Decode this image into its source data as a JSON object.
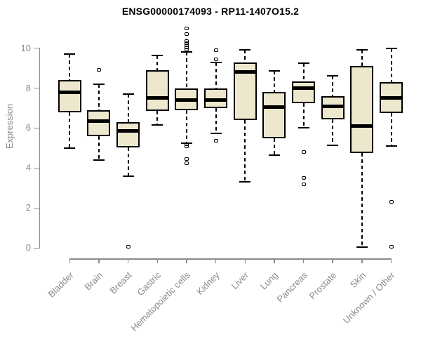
{
  "figure": {
    "title": "ENSG00000174093 - RP11-1407O15.2",
    "background": "#ffffff"
  },
  "chart_data": {
    "type": "boxplot",
    "title": "ENSG00000174093 - RP11-1407O15.2",
    "xlabel": "",
    "ylabel": "Expression",
    "ylim": [
      0,
      11.2
    ],
    "yticks": [
      0,
      2,
      4,
      6,
      8,
      10
    ],
    "grid": false,
    "legend": false,
    "box_fill_color": "#ede7cd",
    "box_border_color": "#000000",
    "median_color": "#000000",
    "axis_color": "#8a8a8a",
    "categories": [
      "Bladder",
      "Brain",
      "Breast",
      "Gastric",
      "Hematopoietic cells",
      "Kidney",
      "Liver",
      "Lung",
      "Pancreas",
      "Prostate",
      "Skin",
      "Unknown / Other"
    ],
    "series": [
      {
        "name": "Bladder",
        "whisker_low": 5.0,
        "q1": 6.8,
        "median": 7.8,
        "q3": 8.4,
        "whisker_high": 9.7,
        "outliers": []
      },
      {
        "name": "Brain",
        "whisker_low": 4.4,
        "q1": 5.6,
        "median": 6.35,
        "q3": 6.9,
        "whisker_high": 8.2,
        "outliers": [
          8.9
        ]
      },
      {
        "name": "Breast",
        "whisker_low": 3.6,
        "q1": 5.05,
        "median": 5.85,
        "q3": 6.3,
        "whisker_high": 7.7,
        "outliers": [
          0.05
        ]
      },
      {
        "name": "Gastric",
        "whisker_low": 6.15,
        "q1": 6.85,
        "median": 7.5,
        "q3": 8.9,
        "whisker_high": 9.65,
        "outliers": []
      },
      {
        "name": "Hematopoietic cells",
        "whisker_low": 5.25,
        "q1": 6.9,
        "median": 7.4,
        "q3": 8.0,
        "whisker_high": 9.8,
        "outliers": [
          11.0,
          10.7,
          10.35,
          10.25,
          10.15,
          10.05,
          9.95,
          5.2,
          5.1,
          4.45,
          4.25
        ]
      },
      {
        "name": "Kidney",
        "whisker_low": 5.75,
        "q1": 7.0,
        "median": 7.4,
        "q3": 8.0,
        "whisker_high": 9.3,
        "outliers": [
          9.9,
          9.45,
          5.35
        ]
      },
      {
        "name": "Liver",
        "whisker_low": 3.3,
        "q1": 6.4,
        "median": 8.8,
        "q3": 9.3,
        "whisker_high": 9.9,
        "outliers": []
      },
      {
        "name": "Lung",
        "whisker_low": 4.65,
        "q1": 5.5,
        "median": 7.05,
        "q3": 7.8,
        "whisker_high": 8.85,
        "outliers": []
      },
      {
        "name": "Pancreas",
        "whisker_low": 6.0,
        "q1": 7.25,
        "median": 8.0,
        "q3": 8.35,
        "whisker_high": 9.25,
        "outliers": [
          4.8,
          3.5,
          3.2
        ]
      },
      {
        "name": "Prostate",
        "whisker_low": 5.15,
        "q1": 6.45,
        "median": 7.1,
        "q3": 7.6,
        "whisker_high": 8.6,
        "outliers": []
      },
      {
        "name": "Skin",
        "whisker_low": 0.05,
        "q1": 4.75,
        "median": 6.1,
        "q3": 9.1,
        "whisker_high": 9.9,
        "outliers": []
      },
      {
        "name": "Unknown / Other",
        "whisker_low": 5.1,
        "q1": 6.75,
        "median": 7.5,
        "q3": 8.3,
        "whisker_high": 10.0,
        "outliers": [
          2.3,
          0.05
        ]
      }
    ]
  }
}
